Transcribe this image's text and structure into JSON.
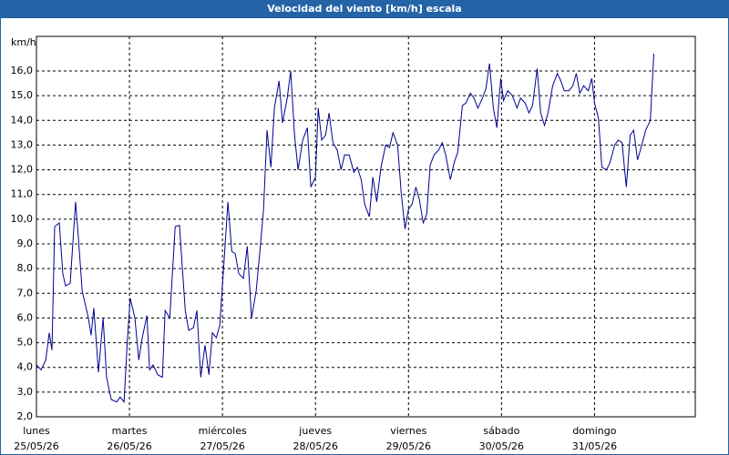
{
  "chart_data": {
    "type": "line",
    "title": "Velocidad del viento [km/h] escala",
    "y_label": "km/h",
    "xlim": [
      0,
      170
    ],
    "ylim": [
      2,
      17.4
    ],
    "grid": true,
    "xticks": [
      {
        "value": 0,
        "label": [
          "lunes",
          "25/05/26"
        ]
      },
      {
        "value": 24,
        "label": [
          "martes",
          "26/05/26"
        ]
      },
      {
        "value": 48,
        "label": [
          "miércoles",
          "27/05/26"
        ]
      },
      {
        "value": 72,
        "label": [
          "jueves",
          "28/05/26"
        ]
      },
      {
        "value": 96,
        "label": [
          "viernes",
          "29/05/26"
        ]
      },
      {
        "value": 120,
        "label": [
          "sábado",
          "30/05/26"
        ]
      },
      {
        "value": 144,
        "label": [
          "domingo",
          "31/05/26"
        ]
      }
    ],
    "yticks": [
      {
        "value": 2,
        "label": "2,0"
      },
      {
        "value": 3,
        "label": "3,0"
      },
      {
        "value": 4,
        "label": "4,0"
      },
      {
        "value": 5,
        "label": "5,0"
      },
      {
        "value": 6,
        "label": "6,0"
      },
      {
        "value": 7,
        "label": "7,0"
      },
      {
        "value": 8,
        "label": "8,0"
      },
      {
        "value": 9,
        "label": "9,0"
      },
      {
        "value": 10,
        "label": "10,0"
      },
      {
        "value": 11,
        "label": "11,0"
      },
      {
        "value": 12,
        "label": "12,0"
      },
      {
        "value": 13,
        "label": "13,0"
      },
      {
        "value": 14,
        "label": "14,0"
      },
      {
        "value": 15,
        "label": "15,0"
      },
      {
        "value": 16,
        "label": "16,0"
      }
    ],
    "x": [
      0,
      1.2,
      2.4,
      3.3,
      4.0,
      4.7,
      5.9,
      6.8,
      7.5,
      8.7,
      10.1,
      10.8,
      11.8,
      13.4,
      14.1,
      14.8,
      15.5,
      16.0,
      17.2,
      18.1,
      19.3,
      20.7,
      21.6,
      22.6,
      23.5,
      24.2,
      25.4,
      26.4,
      27.3,
      28.5,
      29.2,
      30.1,
      31.3,
      32.5,
      33.2,
      34.4,
      35.8,
      36.9,
      38.4,
      39.3,
      40.5,
      41.4,
      42.4,
      43.5,
      44.5,
      45.4,
      46.4,
      47.3,
      48.2,
      49.4,
      50.4,
      51.3,
      52.2,
      53.4,
      54.4,
      55.5,
      56.7,
      57.6,
      58.6,
      59.5,
      60.5,
      61.4,
      62.6,
      63.5,
      64.7,
      65.6,
      66.6,
      67.5,
      68.7,
      69.9,
      70.8,
      72.0,
      72.7,
      73.6,
      74.6,
      75.5,
      76.5,
      77.6,
      78.6,
      79.5,
      80.7,
      81.9,
      82.8,
      83.8,
      84.7,
      85.9,
      86.8,
      87.8,
      88.9,
      90.1,
      91.1,
      92.0,
      93.2,
      94.1,
      95.1,
      96.0,
      96.9,
      97.9,
      98.8,
      99.8,
      100.7,
      101.6,
      102.6,
      103.8,
      104.7,
      105.6,
      106.8,
      107.8,
      108.7,
      109.9,
      110.8,
      112.0,
      112.9,
      113.9,
      115.1,
      116.0,
      116.9,
      117.9,
      118.8,
      119.8,
      120.5,
      121.6,
      122.8,
      124.0,
      124.9,
      126.1,
      127.1,
      128.0,
      129.2,
      130.1,
      131.1,
      132.0,
      133.2,
      134.4,
      135.3,
      136.2,
      137.4,
      138.4,
      139.3,
      140.2,
      141.2,
      142.4,
      143.3,
      144.0,
      145.0,
      145.9,
      147.1,
      148.0,
      149.2,
      150.1,
      151.1,
      152.2,
      153.2,
      154.1,
      155.1,
      156.2,
      157.2,
      158.4,
      159.3
    ],
    "series": [
      {
        "color": "#000090",
        "values": [
          4.1,
          3.9,
          4.3,
          5.4,
          4.7,
          9.7,
          9.85,
          7.8,
          7.3,
          7.4,
          10.7,
          9.3,
          7.1,
          6.0,
          5.3,
          6.4,
          4.9,
          3.8,
          6.0,
          3.6,
          2.7,
          2.6,
          2.8,
          2.6,
          5.2,
          6.8,
          6.0,
          4.3,
          5.2,
          6.1,
          3.9,
          4.1,
          3.7,
          3.6,
          6.3,
          6.0,
          9.7,
          9.75,
          6.3,
          5.5,
          5.6,
          6.3,
          3.6,
          4.9,
          3.7,
          5.4,
          5.2,
          5.7,
          7.8,
          10.7,
          8.7,
          8.6,
          7.8,
          7.6,
          8.9,
          6.0,
          7.1,
          8.6,
          10.4,
          13.6,
          12.1,
          14.5,
          15.6,
          13.9,
          14.9,
          16.0,
          13.4,
          12.0,
          13.2,
          13.7,
          11.3,
          11.7,
          14.5,
          13.2,
          13.4,
          14.3,
          13.1,
          12.8,
          12.0,
          12.6,
          12.6,
          11.9,
          12.1,
          11.6,
          10.6,
          10.1,
          11.7,
          10.7,
          12.1,
          13.0,
          12.9,
          13.5,
          13.0,
          11.1,
          9.6,
          10.4,
          10.6,
          11.3,
          10.8,
          9.85,
          10.2,
          12.2,
          12.6,
          12.8,
          13.1,
          12.6,
          11.6,
          12.3,
          12.7,
          14.6,
          14.7,
          15.1,
          14.9,
          14.5,
          14.9,
          15.3,
          16.3,
          14.5,
          13.7,
          15.7,
          14.8,
          15.2,
          15.0,
          14.5,
          14.9,
          14.7,
          14.3,
          14.6,
          16.1,
          14.3,
          13.8,
          14.3,
          15.4,
          15.9,
          15.6,
          15.2,
          15.2,
          15.4,
          15.9,
          15.1,
          15.4,
          15.2,
          15.7,
          14.7,
          14.1,
          12.1,
          12.0,
          12.3,
          13.0,
          13.2,
          13.1,
          11.3,
          13.4,
          13.6,
          12.4,
          13.0,
          13.6,
          14.0,
          16.7
        ]
      }
    ]
  }
}
